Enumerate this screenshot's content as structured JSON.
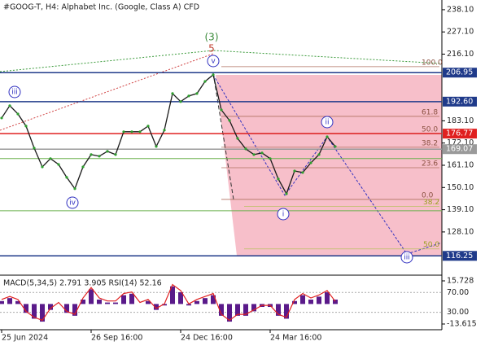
{
  "chart_data": [
    {
      "type": "line",
      "title": "#GOOG-T, H4:  Alphabet Inc. (Google, Class A) CFD",
      "categories": [
        "25 Jun 2024",
        null,
        null,
        null,
        null,
        null,
        null,
        null,
        null,
        null,
        null,
        "26 Sep 16:00",
        null,
        null,
        null,
        null,
        null,
        null,
        null,
        null,
        null,
        null,
        "24 Dec 16:00",
        null,
        null,
        null,
        null,
        null,
        null,
        null,
        null,
        null,
        null,
        "24 Mar 16:00",
        null,
        null,
        null,
        null,
        null,
        null,
        null,
        null
      ],
      "values": [
        184.5,
        190.6,
        186.5,
        180.5,
        169.6,
        160.3,
        164.4,
        161.5,
        155.1,
        149.5,
        160.3,
        166.4,
        165.6,
        168.0,
        166.4,
        177.7,
        177.7,
        177.7,
        180.5,
        170.4,
        178.5,
        196.6,
        192.6,
        195.4,
        196.6,
        202.6,
        205.9,
        188.5,
        183.3,
        174.4,
        169.2,
        166.4,
        167.2,
        164.4,
        154.3,
        147.0,
        158.3,
        157.5,
        162.3,
        166.4,
        175.2,
        170.4
      ],
      "color": "#1a1a1a",
      "ylim": [
        106.7,
        242.9
      ],
      "yticks": [
        {
          "value": 238.1,
          "label": "238.10"
        },
        {
          "value": 227.1,
          "label": "227.10"
        },
        {
          "value": 216.1,
          "label": "216.10"
        },
        {
          "value": 183.1,
          "label": "183.10"
        },
        {
          "value": 172.1,
          "label": "172.10"
        },
        {
          "value": 161.1,
          "label": "161.10"
        },
        {
          "value": 150.1,
          "label": "150.10"
        },
        {
          "value": 139.1,
          "label": "139.10"
        },
        {
          "value": 128.1,
          "label": "128.10"
        }
      ],
      "levels": [
        {
          "value": 206.95,
          "color": "#1f3a8a"
        },
        {
          "value": {
            "value": 192.6,
            "label": "192.60"
          },
          "color": "#1f3a8a"
        },
        {
          "value": 176.77,
          "color": "#e02020"
        },
        {
          "value": 169.07,
          "color": "#9a9a9a"
        },
        {
          "value": 116.25,
          "color": "#1f3a8a"
        }
      ],
      "fib_levels": [
        {
          "value": 209.9,
          "label": "100.0"
        },
        {
          "value": 185.3,
          "label": "61.8"
        },
        {
          "value": 176.9,
          "label": "50.0"
        },
        {
          "value": 170.0,
          "label": "38.2"
        },
        {
          "value": 159.9,
          "label": "23.6"
        },
        {
          "value": 144.2,
          "label": "0.0"
        }
      ],
      "fib_green": [
        {
          "value": 140.8,
          "label": "38.2"
        },
        {
          "value": 119.7,
          "label": "50.0"
        }
      ],
      "green_lines": [
        164.4,
        138.6
      ],
      "wave_labels": [
        "(3)",
        "5",
        "v",
        "iii",
        "iv",
        "i",
        "ii",
        "iii"
      ]
    },
    {
      "type": "bar",
      "title": "MACD(5,34,5) 2.791 3.905 RSI(14) 52.16",
      "series": [
        {
          "color": "#5a1a8a",
          "values": [
            2,
            4,
            2,
            -6,
            -10,
            -12,
            -4,
            0,
            -6,
            -8,
            3,
            10,
            3,
            1,
            1,
            6,
            7,
            0,
            2,
            -4,
            -1,
            12,
            8,
            -1,
            2,
            4,
            6,
            -8,
            -12,
            -8,
            -8,
            -5,
            -2,
            -2,
            -8,
            -10,
            2,
            6,
            3,
            5,
            8,
            3
          ]
        },
        {
          "color": "#e02020",
          "axis": "y2",
          "values": [
            56,
            62,
            56,
            32,
            20,
            14,
            38,
            50,
            32,
            26,
            59,
            80,
            59,
            53,
            53,
            68,
            71,
            50,
            56,
            38,
            47,
            86,
            74,
            47,
            56,
            62,
            68,
            26,
            14,
            26,
            26,
            35,
            44,
            44,
            26,
            20,
            56,
            68,
            59,
            65,
            74,
            52.16
          ]
        }
      ],
      "ylim": [
        -17.5,
        18.5
      ],
      "yticks": [
        15.728,
        -13.615
      ],
      "y2lim": [
        -5,
        101.7
      ],
      "y2ticks": [
        {
          "value": 70,
          "label": "70.00"
        },
        {
          "value": 30,
          "label": "30.00"
        }
      ]
    }
  ]
}
